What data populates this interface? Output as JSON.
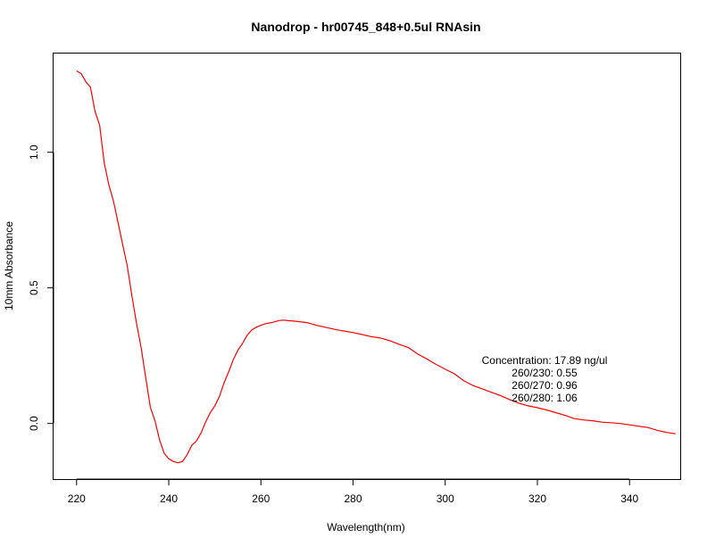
{
  "chart_data": {
    "type": "line",
    "title": "Nanodrop - hr00745_848+0.5ul RNAsin",
    "xlabel": "Wavelength(nm)",
    "ylabel": "10mm Absorbance",
    "xlim": [
      215,
      351
    ],
    "ylim": [
      -0.205,
      1.364
    ],
    "xticks": [
      220,
      240,
      260,
      280,
      300,
      320,
      340
    ],
    "xtick_labels": [
      "220",
      "240",
      "260",
      "280",
      "300",
      "320",
      "340"
    ],
    "yticks": [
      0.0,
      0.5,
      1.0
    ],
    "ytick_labels": [
      "0.0",
      "0.5",
      "1.0"
    ],
    "grid": false,
    "legend": "none",
    "series": [
      {
        "color": "#ff0000",
        "x": [
          220,
          221,
          222,
          223,
          224,
          225,
          226,
          227,
          228,
          229,
          230,
          231,
          232,
          233,
          234,
          235,
          236,
          237,
          238,
          239,
          240,
          241,
          242,
          243,
          244,
          245,
          246,
          247,
          248,
          249,
          250,
          251,
          252,
          253,
          254,
          255,
          256,
          257,
          258,
          259,
          260,
          261,
          262,
          263,
          264,
          265,
          266,
          267,
          268,
          269,
          270,
          272,
          274,
          276,
          278,
          280,
          282,
          284,
          286,
          288,
          290,
          292,
          294,
          296,
          298,
          300,
          302,
          304,
          306,
          308,
          310,
          312,
          314,
          316,
          318,
          320,
          322,
          324,
          326,
          328,
          330,
          332,
          334,
          336,
          338,
          340,
          342,
          344,
          346,
          348,
          350
        ],
        "y": [
          1.3,
          1.29,
          1.26,
          1.24,
          1.15,
          1.1,
          0.96,
          0.88,
          0.82,
          0.74,
          0.66,
          0.58,
          0.47,
          0.37,
          0.28,
          0.17,
          0.06,
          0.01,
          -0.06,
          -0.11,
          -0.13,
          -0.14,
          -0.145,
          -0.14,
          -0.115,
          -0.08,
          -0.065,
          -0.035,
          0.005,
          0.04,
          0.065,
          0.1,
          0.15,
          0.19,
          0.235,
          0.27,
          0.295,
          0.325,
          0.345,
          0.355,
          0.362,
          0.368,
          0.371,
          0.375,
          0.38,
          0.381,
          0.379,
          0.378,
          0.376,
          0.374,
          0.372,
          0.362,
          0.355,
          0.347,
          0.341,
          0.335,
          0.328,
          0.32,
          0.315,
          0.305,
          0.292,
          0.28,
          0.256,
          0.238,
          0.218,
          0.2,
          0.183,
          0.158,
          0.14,
          0.128,
          0.115,
          0.103,
          0.088,
          0.075,
          0.065,
          0.058,
          0.05,
          0.04,
          0.03,
          0.018,
          0.013,
          0.01,
          0.005,
          0.003,
          0.0,
          -0.005,
          -0.01,
          -0.015,
          -0.025,
          -0.033,
          -0.038
        ]
      }
    ],
    "annotations": [
      "Concentration: 17.89 ng/ul",
      "260/230: 0.55",
      "260/270: 0.96",
      "260/280: 1.06"
    ]
  }
}
